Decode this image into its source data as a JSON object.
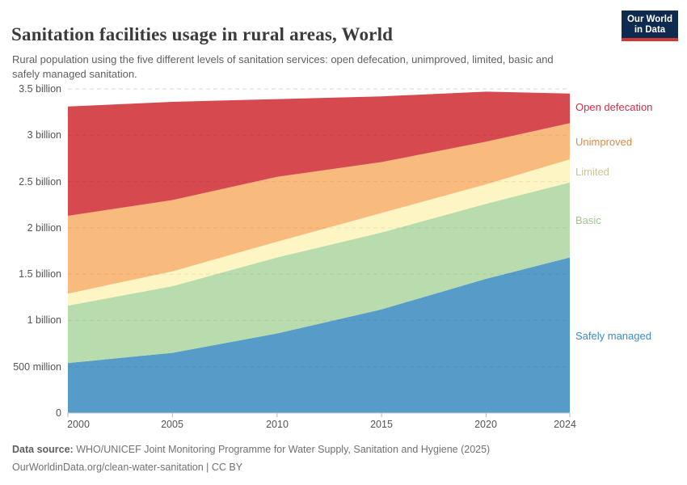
{
  "header": {
    "title": "Sanitation facilities usage in rural areas, World",
    "subtitle": "Rural population using the five different levels of sanitation services: open defecation, unimproved, limited, basic and safely managed sanitation.",
    "logo": {
      "line1": "Our World",
      "line2": "in Data",
      "bg_color": "#0e2a4e",
      "accent_color": "#d13734"
    }
  },
  "chart_data": {
    "type": "area",
    "stacked": true,
    "title": "Sanitation facilities usage in rural areas, World",
    "unit": "billion people",
    "x": [
      2000,
      2005,
      2010,
      2015,
      2020,
      2024
    ],
    "xlim": [
      2000,
      2024
    ],
    "ylim": [
      0,
      3.5
    ],
    "grid": "dashed horizontal",
    "legend_position": "right",
    "series": [
      {
        "key": "safely_managed",
        "name": "Safely managed",
        "color": "#579bc9",
        "label_color": "#3d8bc6",
        "values": [
          0.54,
          0.65,
          0.86,
          1.12,
          1.45,
          1.68
        ]
      },
      {
        "key": "basic",
        "name": "Basic",
        "color": "#b8dcae",
        "label_color": "#a1c493",
        "values": [
          0.62,
          0.72,
          0.82,
          0.83,
          0.81,
          0.81
        ]
      },
      {
        "key": "limited",
        "name": "Limited",
        "color": "#fdf5c3",
        "label_color": "#cbc490",
        "values": [
          0.13,
          0.16,
          0.17,
          0.21,
          0.21,
          0.25
        ]
      },
      {
        "key": "unimproved",
        "name": "Unimproved",
        "color": "#f9ba7d",
        "label_color": "#dc8a4c",
        "values": [
          0.84,
          0.77,
          0.7,
          0.55,
          0.46,
          0.39
        ]
      },
      {
        "key": "open_defecation",
        "name": "Open defecation",
        "color": "#d6494f",
        "label_color": "#d02f44",
        "values": [
          1.18,
          1.06,
          0.84,
          0.71,
          0.54,
          0.32
        ]
      }
    ],
    "yticks": [
      {
        "value": 3.5,
        "label": "3.5 billion"
      },
      {
        "value": 3.0,
        "label": "3 billion"
      },
      {
        "value": 2.5,
        "label": "2.5 billion"
      },
      {
        "value": 2.0,
        "label": "2 billion"
      },
      {
        "value": 1.5,
        "label": "1.5 billion"
      },
      {
        "value": 1.0,
        "label": "1 billion"
      },
      {
        "value": 0.5,
        "label": "500 million"
      },
      {
        "value": 0.0,
        "label": "0"
      }
    ],
    "xticks": [
      {
        "value": 2000,
        "label": "2000"
      },
      {
        "value": 2005,
        "label": "2005"
      },
      {
        "value": 2010,
        "label": "2010"
      },
      {
        "value": 2015,
        "label": "2015"
      },
      {
        "value": 2020,
        "label": "2020"
      },
      {
        "value": 2024,
        "label": "2024"
      }
    ]
  },
  "footer": {
    "datasource_label": "Data source:",
    "datasource_text": " WHO/UNICEF Joint Monitoring Programme for Water Supply, Sanitation and Hygiene (2025)",
    "license_text": "OurWorldinData.org/clean-water-sanitation | CC BY"
  }
}
